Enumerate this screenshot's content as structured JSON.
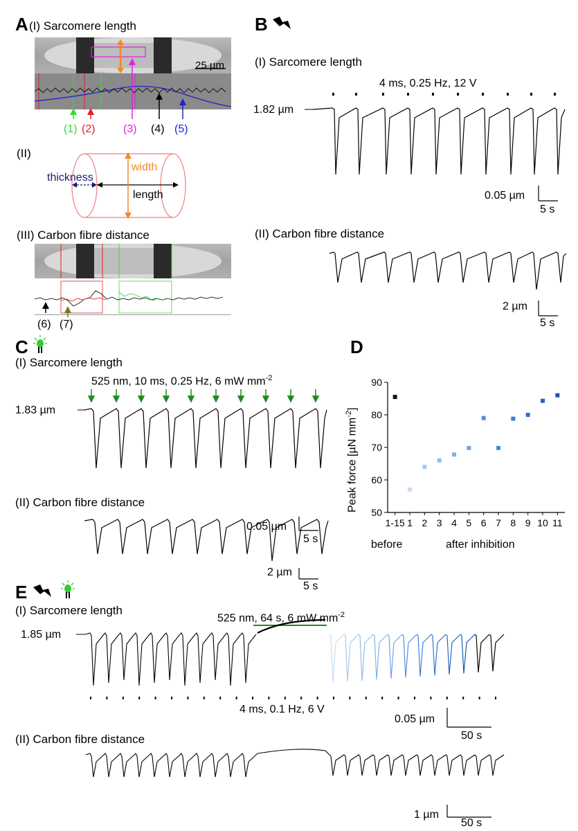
{
  "panelA": {
    "letter": "A",
    "title_I": "(I) Sarcomere length",
    "scale": "25 µm",
    "markers": [
      "(1)",
      "(2)",
      "(3)",
      "(4)",
      "(5)"
    ],
    "title_II": "(II)",
    "thickness": "thickness",
    "width": "width",
    "length": "length",
    "title_III": "(III) Carbon fibre distance",
    "markers_III": [
      "(6)",
      "(7)"
    ]
  },
  "panelB": {
    "letter": "B",
    "title_I": "(I) Sarcomere length",
    "stim": "4 ms, 0.25 Hz, 12 V",
    "baseline": "1.82 µm",
    "scale_y": "0.05 µm",
    "scale_x": "5 s",
    "title_II": "(II) Carbon fibre distance",
    "scale_y2": "2 µm",
    "scale_x2": "5 s"
  },
  "panelC": {
    "letter": "C",
    "title_I": "(I) Sarcomere length",
    "stim_main": "525 nm, 10 ms, 0.25 Hz, 6 mW mm",
    "stim_sup": "-2",
    "baseline": "1.83 µm",
    "scale_y": "0.05 µm",
    "scale_x": "5 s",
    "title_II": "(II) Carbon fibre distance",
    "scale_y2": "2 µm",
    "scale_x2": "5 s"
  },
  "panelD": {
    "letter": "D",
    "ylabel_main": "Peak force [µN mm",
    "ylabel_sup": "-2",
    "ylabel_end": "]",
    "label_before": "before",
    "label_after": "after inhibition"
  },
  "chart_data": {
    "type": "scatter",
    "categories": [
      "1-15",
      "1",
      "2",
      "3",
      "4",
      "5",
      "6",
      "7",
      "8",
      "9",
      "10",
      "11"
    ],
    "values": [
      85.5,
      57,
      64,
      66,
      67.8,
      69.8,
      79,
      69.8,
      78.8,
      80,
      84.3,
      86
    ],
    "colors": [
      "#111111",
      "#c6dcf5",
      "#a9cbef",
      "#94bdeb",
      "#82b2e8",
      "#6ea5e4",
      "#4d90de",
      "#4a8ddb",
      "#3b7fd3",
      "#2f74ca",
      "#2167bf",
      "#1659b0"
    ],
    "ylim": [
      50,
      90
    ],
    "yticks": [
      50,
      60,
      70,
      80,
      90
    ],
    "xlabel": "",
    "ylabel": "Peak force [µN mm-2]"
  },
  "panelE": {
    "letter": "E",
    "title_I": "(I) Sarcomere length",
    "light": "525 nm, 64 s, 6 mW mm",
    "light_sup": "-2",
    "baseline": "1.85 µm",
    "stim": "4 ms, 0.1 Hz, 6 V",
    "scale_y": "0.05 µm",
    "scale_x": "50 s",
    "title_II": "(II) Carbon fibre distance",
    "scale_y2": "1 µm",
    "scale_x2": "50 s"
  },
  "colors": {
    "green": "#1f8a1f",
    "bright_green": "#33dd33",
    "red": "#e02020",
    "magenta": "#e020e0",
    "blue": "#2020d0",
    "orange": "#f08a20",
    "navy": "#1a1a7a",
    "olive": "#7a7a20",
    "pink_outline": "#f08080"
  }
}
